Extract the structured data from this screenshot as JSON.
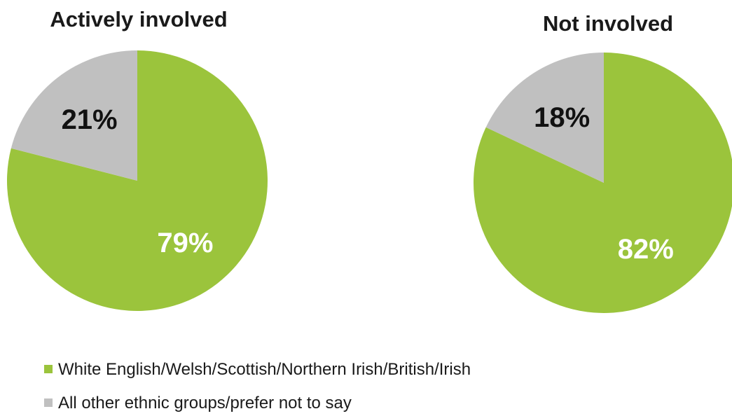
{
  "chart_data": [
    {
      "type": "pie",
      "title": "Actively involved",
      "slices": [
        {
          "label": "White English/Welsh/Scottish/Northern Irish/British/Irish",
          "value": 79,
          "display": "79%",
          "color": "#9bc43c",
          "label_color": "#ffffff"
        },
        {
          "label": "All other ethnic groups/prefer not to say",
          "value": 21,
          "display": "21%",
          "color": "#c0c0c0",
          "label_color": "#111111"
        }
      ]
    },
    {
      "type": "pie",
      "title": "Not involved",
      "slices": [
        {
          "label": "White English/Welsh/Scottish/Northern Irish/British/Irish",
          "value": 82,
          "display": "82%",
          "color": "#9bc43c",
          "label_color": "#ffffff"
        },
        {
          "label": "All other ethnic groups/prefer not to say",
          "value": 18,
          "display": "18%",
          "color": "#c0c0c0",
          "label_color": "#111111"
        }
      ]
    }
  ],
  "legend": {
    "placement": "bottom-left",
    "items": [
      {
        "label": "White English/Welsh/Scottish/Northern Irish/British/Irish",
        "color": "#9bc43c"
      },
      {
        "label": "All other ethnic groups/prefer not to say",
        "color": "#c0c0c0"
      }
    ]
  }
}
